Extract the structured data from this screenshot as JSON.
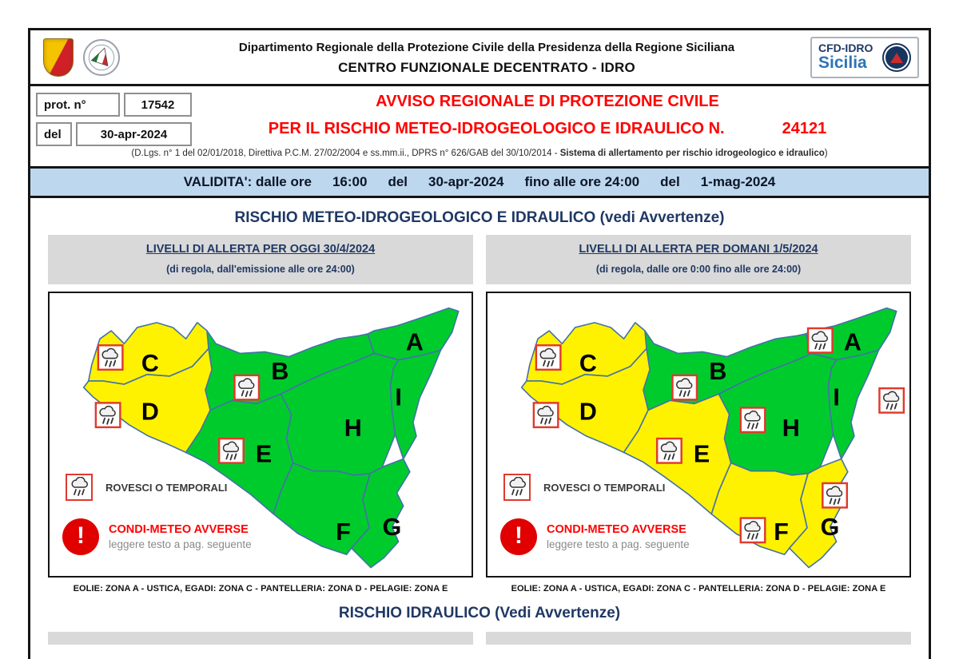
{
  "header": {
    "dept_line": "Dipartimento Regionale della Protezione Civile della Presidenza della Regione Siciliana",
    "center_line": "CENTRO FUNZIONALE DECENTRATO - IDRO",
    "cfd_line1": "CFD-IDRO",
    "cfd_line2": "Sicilia",
    "icons": [
      "sicily-coat-of-arms",
      "protezione-civile-emblem",
      "cfd-idro-emblem"
    ]
  },
  "protocol": {
    "label": "prot. n°",
    "number": "17542",
    "date_label": "del",
    "date": "30-apr-2024"
  },
  "title": {
    "line1": "AVVISO REGIONALE DI PROTEZIONE CIVILE",
    "line2": "PER IL RISCHIO METEO-IDROGEOLOGICO E IDRAULICO N.",
    "number": "24121",
    "law_prefix": "(D.Lgs. n° 1 del 02/01/2018, Direttiva P.C.M. 27/02/2004 e ss.mm.ii., DPRS n° 626/GAB del 30/10/2014 - ",
    "law_bold": "Sistema di allertamento per rischio idrogeologico e idraulico",
    "law_suffix": ")"
  },
  "validity": {
    "parts": [
      "VALIDITA': dalle ore",
      "16:00",
      "del",
      "30-apr-2024",
      "fino alle ore 24:00",
      "del",
      "1-mag-2024"
    ]
  },
  "sections": {
    "meteo": "RISCHIO METEO-IDROGEOLOGICO E IDRAULICO (vedi Avvertenze)",
    "idraulico": "RISCHIO IDRAULICO (Vedi Avvertenze)"
  },
  "panels": [
    {
      "title": "LIVELLI DI ALLERTA PER OGGI 30/4/2024",
      "subtitle": "(di regola, dall'emissione alle ore 24:00)",
      "caption": "EOLIE: ZONA A - USTICA, EGADI: ZONA C - PANTELLERIA: ZONA D - PELAGIE: ZONA E",
      "legend": {
        "rain": "ROVESCI O TEMPORALI",
        "warn_title": "CONDI-METEO AVVERSE",
        "warn_sub": "leggere testo a pag. seguente"
      },
      "zones": [
        {
          "id": "A",
          "level": "green",
          "icon": false
        },
        {
          "id": "B",
          "level": "green",
          "icon": true
        },
        {
          "id": "C",
          "level": "yellow",
          "icon": true
        },
        {
          "id": "D",
          "level": "yellow",
          "icon": true
        },
        {
          "id": "E",
          "level": "green",
          "icon": true
        },
        {
          "id": "F",
          "level": "green",
          "icon": false
        },
        {
          "id": "G",
          "level": "green",
          "icon": false
        },
        {
          "id": "H",
          "level": "green",
          "icon": false
        },
        {
          "id": "I",
          "level": "green",
          "icon": false
        }
      ]
    },
    {
      "title": "LIVELLI DI ALLERTA PER DOMANI 1/5/2024",
      "subtitle": "(di regola, dalle ore 0:00 fino alle ore 24:00)",
      "caption": "EOLIE: ZONA A - USTICA, EGADI: ZONA C - PANTELLERIA: ZONA D - PELAGIE: ZONA E",
      "legend": {
        "rain": "ROVESCI O TEMPORALI",
        "warn_title": "CONDI-METEO AVVERSE",
        "warn_sub": "leggere testo a pag. seguente"
      },
      "zones": [
        {
          "id": "A",
          "level": "green",
          "icon": true
        },
        {
          "id": "B",
          "level": "green",
          "icon": true
        },
        {
          "id": "C",
          "level": "yellow",
          "icon": true
        },
        {
          "id": "D",
          "level": "yellow",
          "icon": true
        },
        {
          "id": "E",
          "level": "yellow",
          "icon": true
        },
        {
          "id": "F",
          "level": "yellow",
          "icon": true
        },
        {
          "id": "G",
          "level": "yellow",
          "icon": true
        },
        {
          "id": "H",
          "level": "green",
          "icon": true
        },
        {
          "id": "I",
          "level": "green",
          "icon": true
        }
      ]
    }
  ],
  "colors": {
    "alert_green": "#00CB2D",
    "alert_yellow": "#FFF200",
    "title_red": "#FF0000",
    "navy": "#1F3864",
    "validity_bg": "#BDD7EE",
    "bar_gray": "#D9D9D9",
    "map_border": "#4472A8",
    "icon_border": "#E03A2C"
  }
}
